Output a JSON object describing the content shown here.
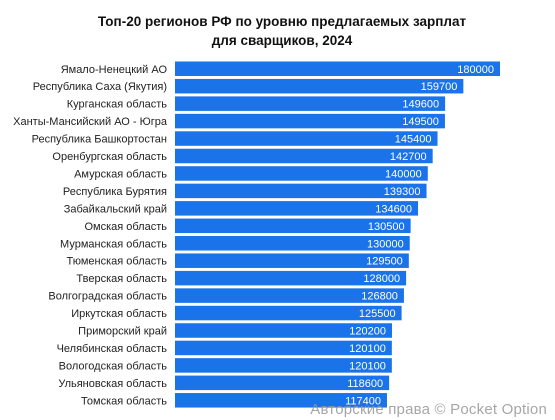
{
  "chart_data": {
    "type": "bar",
    "orientation": "horizontal",
    "title_lines": [
      "Топ-20 регионов РФ по уровню предлагаемых зарплат",
      "для сварщиков, 2024"
    ],
    "categories": [
      "Ямало-Ненецкий АО",
      "Республика Саха (Якутия)",
      "Курганская область",
      "Ханты-Мансийский АО - Югра",
      "Республика Башкортостан",
      "Оренбургская область",
      "Амурская область",
      "Республика Бурятия",
      "Забайкальский край",
      "Омская область",
      "Мурманская область",
      "Тюменская область",
      "Тверская область",
      "Волгоградская область",
      "Иркутская область",
      "Приморский край",
      "Челябинская область",
      "Вологодская область",
      "Ульяновская область",
      "Томская область"
    ],
    "values": [
      180000,
      159700,
      149600,
      149500,
      145400,
      142700,
      140000,
      139300,
      134600,
      130500,
      130000,
      129500,
      128000,
      126800,
      125500,
      120200,
      120100,
      120100,
      118600,
      117400
    ],
    "xlim": [
      0,
      180000
    ],
    "grid": false,
    "legend": "none",
    "bar_color": "#1a73e8",
    "value_label_color": "#ffffff"
  },
  "watermark": "Авторские права © Pocket Option"
}
